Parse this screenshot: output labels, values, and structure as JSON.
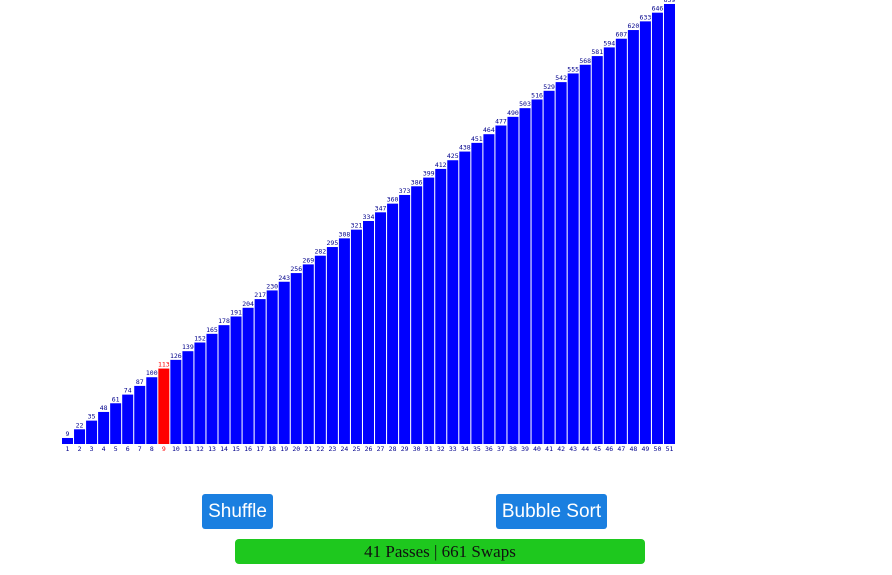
{
  "chart_data": {
    "type": "bar",
    "categories": [
      "1",
      "2",
      "3",
      "4",
      "5",
      "6",
      "7",
      "8",
      "9",
      "10",
      "11",
      "12",
      "13",
      "14",
      "15",
      "16",
      "17",
      "18",
      "19",
      "20",
      "21",
      "22",
      "23",
      "24",
      "25",
      "26",
      "27",
      "28",
      "29",
      "30",
      "31",
      "32",
      "33",
      "34",
      "35",
      "36",
      "37",
      "38",
      "39",
      "40",
      "41",
      "42",
      "43",
      "44",
      "45",
      "46",
      "47",
      "48",
      "49",
      "50",
      "51"
    ],
    "values": [
      9,
      22,
      35,
      48,
      61,
      74,
      87,
      100,
      113,
      126,
      139,
      152,
      165,
      178,
      191,
      204,
      217,
      230,
      243,
      256,
      269,
      282,
      295,
      308,
      321,
      334,
      347,
      360,
      373,
      386,
      399,
      412,
      425,
      438,
      451,
      464,
      477,
      490,
      503,
      516,
      529,
      542,
      555,
      568,
      581,
      594,
      607,
      620,
      633,
      646,
      659
    ],
    "highlight_index": 8,
    "bar_color": "#0000ff",
    "highlight_color": "#ff0000",
    "ylim": [
      0,
      659
    ]
  },
  "controls": {
    "shuffle_label": "Shuffle",
    "sort_label": "Bubble Sort"
  },
  "status": {
    "text": "41 Passes | 661 Swaps",
    "color": "#1ec81e"
  }
}
